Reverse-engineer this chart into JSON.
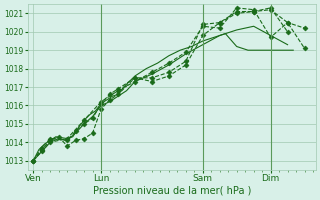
{
  "bg_color": "#d8f0e8",
  "grid_color": "#a0c8b0",
  "line_color": "#1a6b1a",
  "marker_color": "#1a6b1a",
  "xlabel": "Pression niveau de la mer( hPa )",
  "xlabel_color": "#1a6b1a",
  "tick_color": "#1a6b1a",
  "ylim": [
    1012.5,
    1021.5
  ],
  "yticks": [
    1013,
    1014,
    1015,
    1016,
    1017,
    1018,
    1019,
    1020,
    1021
  ],
  "day_labels": [
    "Ven",
    "Lun",
    "Sam",
    "Dim"
  ],
  "day_positions": [
    0,
    48,
    120,
    168
  ],
  "xlim": [
    -4,
    200
  ],
  "series": [
    {
      "x": [
        0,
        4,
        8,
        12,
        16,
        24,
        28,
        32,
        36,
        40,
        44,
        48,
        52,
        56,
        60,
        64,
        68,
        72,
        80,
        88,
        96,
        104,
        112,
        120,
        128,
        136,
        144,
        152,
        160,
        168,
        176,
        184
      ],
      "y": [
        1013.0,
        1013.6,
        1013.9,
        1014.1,
        1014.3,
        1014.2,
        1014.3,
        1014.8,
        1015.2,
        1015.5,
        1015.7,
        1016.1,
        1016.3,
        1016.5,
        1016.6,
        1017.0,
        1017.3,
        1017.6,
        1018.0,
        1018.3,
        1018.7,
        1019.0,
        1019.2,
        1019.5,
        1019.7,
        1019.9,
        1019.2,
        1019.0,
        1019.0,
        1019.0,
        1019.0,
        1019.0
      ],
      "has_markers": false,
      "linestyle": "-"
    },
    {
      "x": [
        0,
        6,
        12,
        18,
        24,
        30,
        36,
        42,
        48,
        54,
        60,
        66,
        72,
        84,
        96,
        108,
        120,
        132,
        144,
        156,
        168,
        180
      ],
      "y": [
        1013.0,
        1013.5,
        1014.0,
        1014.2,
        1014.1,
        1014.5,
        1015.0,
        1015.4,
        1016.0,
        1016.2,
        1016.5,
        1016.8,
        1017.3,
        1017.7,
        1018.2,
        1018.8,
        1019.3,
        1019.8,
        1020.1,
        1020.3,
        1019.8,
        1019.3
      ],
      "has_markers": false,
      "linestyle": "-"
    },
    {
      "x": [
        0,
        6,
        12,
        18,
        24,
        30,
        36,
        42,
        48,
        54,
        60,
        72,
        84,
        96,
        108,
        120,
        132,
        144,
        156,
        168,
        180,
        192
      ],
      "y": [
        1013.0,
        1013.6,
        1014.1,
        1014.3,
        1013.8,
        1014.1,
        1014.2,
        1014.5,
        1015.8,
        1016.3,
        1016.6,
        1017.5,
        1017.3,
        1017.6,
        1018.2,
        1019.8,
        1020.5,
        1021.0,
        1021.1,
        1021.2,
        1020.5,
        1019.1
      ],
      "has_markers": true,
      "linestyle": "--"
    },
    {
      "x": [
        0,
        6,
        12,
        24,
        30,
        36,
        42,
        48,
        54,
        60,
        72,
        84,
        96,
        108,
        120,
        132,
        144,
        156,
        168,
        180
      ],
      "y": [
        1013.0,
        1013.7,
        1014.2,
        1014.1,
        1014.6,
        1015.0,
        1015.3,
        1016.1,
        1016.6,
        1016.9,
        1017.5,
        1017.5,
        1017.8,
        1018.4,
        1020.4,
        1020.5,
        1021.1,
        1021.1,
        1021.3,
        1020.0
      ],
      "has_markers": true,
      "linestyle": "--"
    },
    {
      "x": [
        0,
        6,
        12,
        24,
        36,
        48,
        60,
        72,
        84,
        96,
        108,
        120,
        132,
        144,
        156,
        168,
        180,
        192
      ],
      "y": [
        1013.0,
        1013.5,
        1014.0,
        1014.2,
        1015.2,
        1016.2,
        1016.8,
        1017.3,
        1017.8,
        1018.3,
        1018.9,
        1020.3,
        1020.2,
        1021.3,
        1021.2,
        1019.7,
        1020.5,
        1020.2
      ],
      "has_markers": true,
      "linestyle": "--"
    }
  ],
  "vline_positions": [
    48,
    120,
    168
  ],
  "vline_color": "#5a9a5a"
}
